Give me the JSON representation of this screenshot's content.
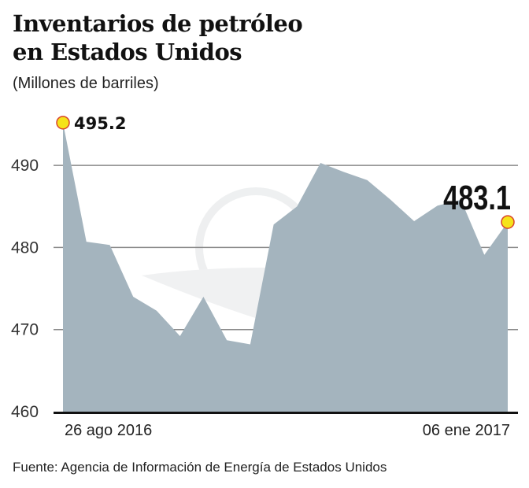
{
  "header": {
    "title_line1": "Inventarios de petróleo",
    "title_line2": "en Estados Unidos",
    "subtitle": "(Millones de barriles)"
  },
  "source": "Fuente: Agencia de Información de Energía de Estados Unidos",
  "chart_data": {
    "type": "area",
    "title": "Inventarios de petróleo en Estados Unidos",
    "ylabel": "(Millones de barriles)",
    "ylim": [
      460,
      496
    ],
    "yticks": [
      "460",
      "470",
      "480",
      "490"
    ],
    "grid": true,
    "x_labels": [
      "26 ago 2016",
      "06 ene 2017"
    ],
    "x": [
      "26 ago 2016",
      "2 sep 2016",
      "9 sep 2016",
      "16 sep 2016",
      "23 sep 2016",
      "30 sep 2016",
      "7 oct 2016",
      "14 oct 2016",
      "21 oct 2016",
      "28 oct 2016",
      "4 nov 2016",
      "11 nov 2016",
      "18 nov 2016",
      "25 nov 2016",
      "2 dic 2016",
      "9 dic 2016",
      "16 dic 2016",
      "23 dic 2016",
      "30 dic 2016",
      "06 ene 2017"
    ],
    "values": [
      495.2,
      480.7,
      480.3,
      474.0,
      472.3,
      469.2,
      474.0,
      468.7,
      468.2,
      482.8,
      485.0,
      490.3,
      489.2,
      488.2,
      485.8,
      483.2,
      485.1,
      485.8,
      479.1,
      483.1
    ],
    "annotations": [
      {
        "label": "495.2",
        "index": 0
      },
      {
        "label": "483.1",
        "index": 19
      }
    ],
    "colors": {
      "fill": "#a4b4be",
      "marker": "#f5e31a",
      "marker_stroke": "#d9442b",
      "grid": "#8a8a8a"
    }
  }
}
